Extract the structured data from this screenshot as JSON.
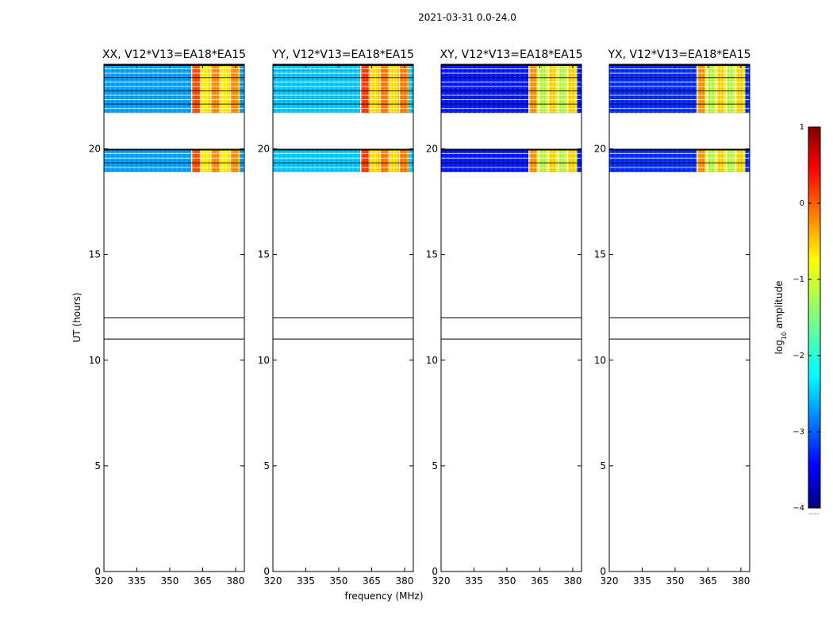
{
  "chart_data": {
    "type": "heatmap",
    "title": "2021-03-31 0.0-24.0",
    "xlabel": "frequency (MHz)",
    "ylabel": "UT (hours)",
    "xlim": [
      320,
      384
    ],
    "ylim": [
      0,
      24
    ],
    "xticks": [
      320,
      335,
      350,
      365,
      380
    ],
    "yticks": [
      0,
      5,
      10,
      15,
      20
    ],
    "horizontal_lines_ut": [
      11.0,
      12.0
    ],
    "data_blocks_ut": [
      [
        18.9,
        20.0
      ],
      [
        21.7,
        24.0
      ]
    ],
    "bright_band_mhz": [
      360,
      382
    ],
    "panels": [
      {
        "title": "XX, V12*V13=EA18*EA15",
        "background_level": -2.6,
        "band_level": -0.6
      },
      {
        "title": "YY, V12*V13=EA18*EA15",
        "background_level": -2.4,
        "band_level": -0.5
      },
      {
        "title": "XY, V12*V13=EA18*EA15",
        "background_level": -3.3,
        "band_level": -1.0
      },
      {
        "title": "YX, V12*V13=EA18*EA15",
        "background_level": -3.2,
        "band_level": -1.0
      }
    ],
    "colorbar": {
      "label": "log10 amplitude",
      "range": [
        -4,
        1
      ],
      "ticks": [
        1,
        0,
        -1,
        -2,
        -3,
        -4
      ],
      "colormap": "jet",
      "ellipsis": "....."
    }
  }
}
